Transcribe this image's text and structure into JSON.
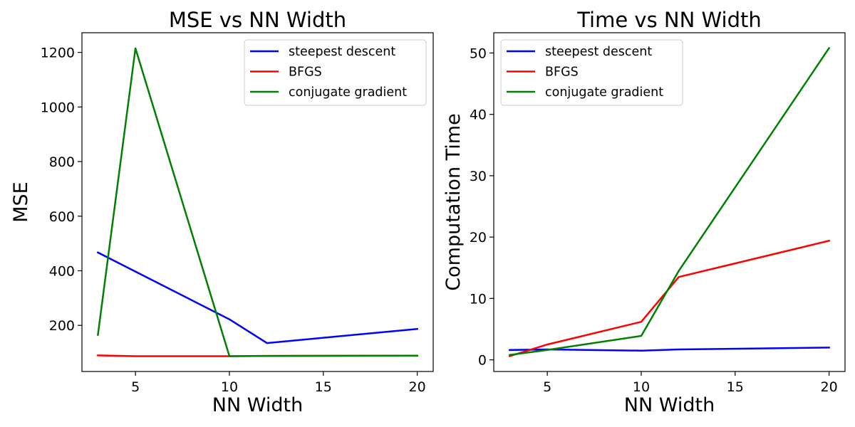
{
  "chart_data": [
    {
      "type": "line",
      "title": "MSE vs NN Width",
      "xlabel": "NN Width",
      "ylabel": "MSE",
      "xlim": [
        2.15,
        20.85
      ],
      "ylim": [
        31,
        1272
      ],
      "xticks": [
        5,
        10,
        15,
        20
      ],
      "yticks": [
        200,
        400,
        600,
        800,
        1000,
        1200
      ],
      "legend_position": "top-right",
      "grid": false,
      "series": [
        {
          "name": "steepest descent",
          "color": "#0000ff",
          "x": [
            3,
            5,
            10,
            12,
            20
          ],
          "y": [
            467,
            397,
            222,
            135,
            187
          ]
        },
        {
          "name": "BFGS",
          "color": "#ff0000",
          "x": [
            3,
            5,
            10,
            12,
            20
          ],
          "y": [
            90,
            87,
            87,
            88,
            89
          ]
        },
        {
          "name": "conjugate gradient",
          "color": "#008000",
          "x": [
            3,
            5,
            10,
            12,
            20
          ],
          "y": [
            165,
            1215,
            87,
            88,
            89
          ]
        }
      ]
    },
    {
      "type": "line",
      "title": "Time vs NN Width",
      "xlabel": "NN Width",
      "ylabel": "Computation Time",
      "xlim": [
        2.15,
        20.85
      ],
      "ylim": [
        -1.9,
        53.3
      ],
      "xticks": [
        5,
        10,
        15,
        20
      ],
      "yticks": [
        0,
        10,
        20,
        30,
        40,
        50
      ],
      "legend_position": "top-left",
      "grid": false,
      "series": [
        {
          "name": "steepest descent",
          "color": "#0000ff",
          "x": [
            3,
            5,
            10,
            12,
            20
          ],
          "y": [
            1.6,
            1.7,
            1.5,
            1.7,
            2.0
          ]
        },
        {
          "name": "BFGS",
          "color": "#ff0000",
          "x": [
            3,
            5,
            10,
            12,
            20
          ],
          "y": [
            0.6,
            2.5,
            6.2,
            13.5,
            19.4
          ]
        },
        {
          "name": "conjugate gradient",
          "color": "#008000",
          "x": [
            3,
            5,
            10,
            12,
            20
          ],
          "y": [
            0.8,
            1.6,
            3.9,
            14.5,
            50.8
          ]
        }
      ]
    }
  ]
}
